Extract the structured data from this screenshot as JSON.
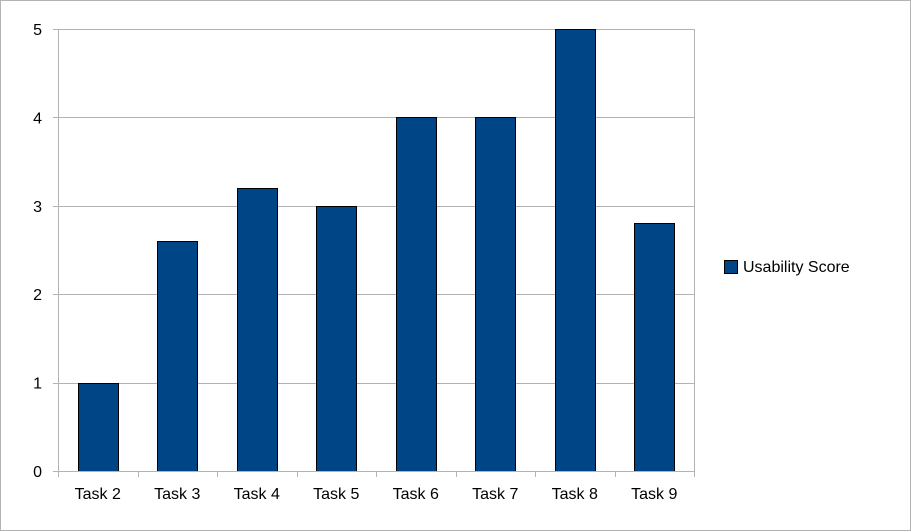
{
  "chart_data": {
    "type": "bar",
    "title": "",
    "xlabel": "",
    "ylabel": "",
    "categories": [
      "Task 2",
      "Task 3",
      "Task 4",
      "Task 5",
      "Task 6",
      "Task 7",
      "Task 8",
      "Task 9"
    ],
    "series": [
      {
        "name": "Usability Score",
        "values": [
          1,
          2.6,
          3.2,
          3,
          4,
          4,
          5,
          2.8
        ],
        "color": "#004586"
      }
    ],
    "ylim": [
      0,
      5
    ],
    "yticks": [
      0,
      1,
      2,
      3,
      4,
      5
    ],
    "grid": true,
    "legend_position": "right"
  }
}
